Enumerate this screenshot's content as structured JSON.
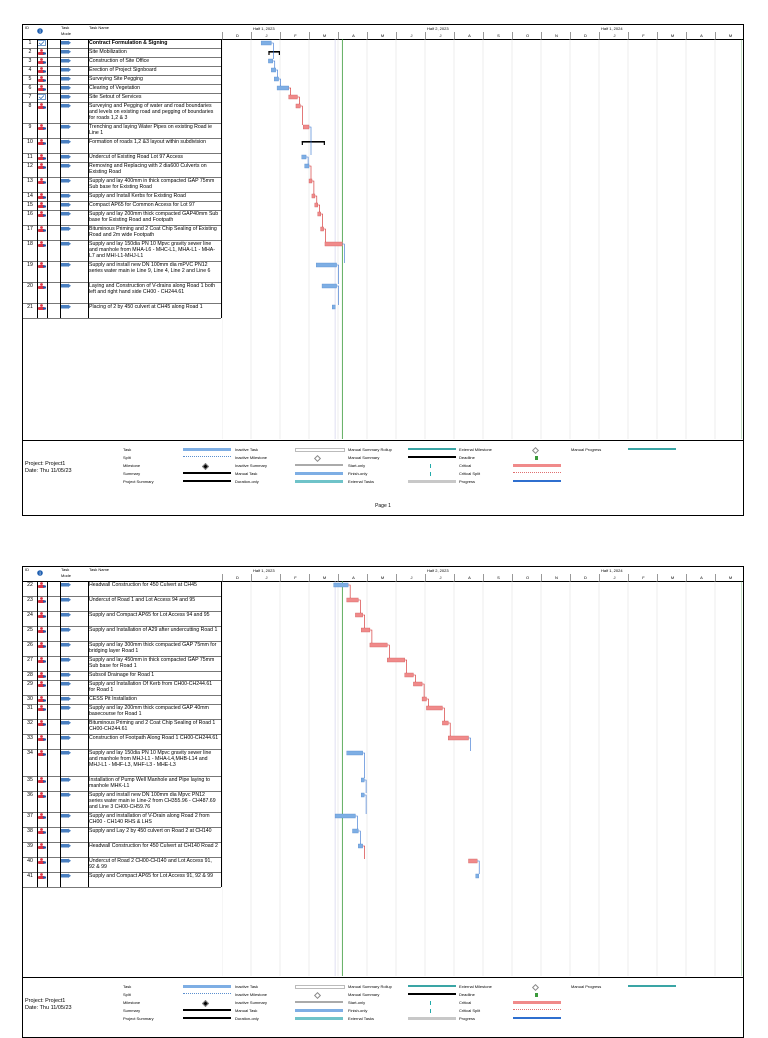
{
  "columns": {
    "id": "ID",
    "mode_line1": "Task",
    "mode_line2": "Mode",
    "name": "Task Name"
  },
  "timescale": {
    "halves": [
      "Half 1, 2023",
      "Half 2, 2023",
      "Half 1, 2024"
    ],
    "months": [
      "D",
      "J",
      "F",
      "M",
      "A",
      "M",
      "J",
      "J",
      "A",
      "S",
      "O",
      "N",
      "D",
      "J",
      "F",
      "M",
      "A",
      "M"
    ]
  },
  "page1": {
    "rows": [
      {
        "id": "1",
        "name": "Contract Formulation & Signing",
        "bold": true
      },
      {
        "id": "2",
        "name": "Site Mobilization"
      },
      {
        "id": "3",
        "name": "Construction of Site Office"
      },
      {
        "id": "4",
        "name": "Erection of Project Signboard"
      },
      {
        "id": "5",
        "name": "Surveying Site Pegging"
      },
      {
        "id": "6",
        "name": "Clearing of Vegetation"
      },
      {
        "id": "7",
        "name": "Site Setout of Services"
      },
      {
        "id": "8",
        "name": "Surveying and Pegging of water and road boundaries and levels on existing road and pegging of boundaries for roads 1,2 & 3"
      },
      {
        "id": "9",
        "name": "Trenching and laying Water Pipes on existing Road ie Line 1"
      },
      {
        "id": "10",
        "name": "Formation of roads 1,2 &3 layout within subdivision"
      },
      {
        "id": "11",
        "name": "Undercut of Existing Road Lot 97 Access"
      },
      {
        "id": "12",
        "name": "Removing and Replacing with 2 dia600 Culverts on Existing Road"
      },
      {
        "id": "13",
        "name": "Supply and lay 400mm in thick compacted GAP 75mm Sub base for Existing Road"
      },
      {
        "id": "14",
        "name": "Supply and Install Kerbs for Existing Road"
      },
      {
        "id": "15",
        "name": "Compact AP65 for Common Access for Lot 97"
      },
      {
        "id": "16",
        "name": "Supply and lay 200mm thick compacted GAP40mm Sub base for Existing Road and Footpath"
      },
      {
        "id": "17",
        "name": "Bituminous Priming and 2 Coat Chip Sealing of Existing Road and 2m wide Footpath"
      },
      {
        "id": "18",
        "name": "Supply and lay 150dia PN 10 Mpvc gravity sewer line and manhole from MHA-L6 - MHC-L1, MHA-L1 - MHA-L7 and MHI-L1-MHJ-L1"
      },
      {
        "id": "19",
        "name": "Supply and install new DN 100mm dia mPVC PN12 series water main ie Line 9, Line 4, Line 2 and Line 6"
      },
      {
        "id": "20",
        "name": "Laying and Construction of V-drains along Road 1 both left and right hand side CH00 - CH244.61"
      },
      {
        "id": "21",
        "name": "Placing of 2 by 450 culvert at CH45 along Road 1"
      }
    ],
    "page_number": "Page 1"
  },
  "page2": {
    "rows": [
      {
        "id": "22",
        "name": "Headwall Construction for 450 Culvert at CH45"
      },
      {
        "id": "23",
        "name": "Undercut of Road 1 and Lot Access 94 and 95"
      },
      {
        "id": "24",
        "name": "Supply and Compact AP65 for Lot Access 94 and 95"
      },
      {
        "id": "25",
        "name": "Supply and Installation of A29 after undercutting Road 1"
      },
      {
        "id": "26",
        "name": "Supply and lay 300mm thick compacted GAP 75mm for bridging layer Road 1"
      },
      {
        "id": "27",
        "name": "Supply and lay 450mm in thick compacted GAP 75mm Sub base for Road 1"
      },
      {
        "id": "28",
        "name": "Subsoil Drainage for Road 1"
      },
      {
        "id": "29",
        "name": "Supply and Installation Of Kerb from CH00-CH244.61 for Road 1"
      },
      {
        "id": "30",
        "name": "CESS Pit Installation"
      },
      {
        "id": "31",
        "name": "Supply and lay 200mm thick compacted GAP 40mm basecourse for Road 1"
      },
      {
        "id": "32",
        "name": "Bituminous Priming and 2 Coat Chip Sealing of Road 1 CH00-CH244.61"
      },
      {
        "id": "33",
        "name": "Construction of Footpath Along Road 1 CH00-CH244.61"
      },
      {
        "id": "34",
        "name": "Supply and lay 150dia PN 10 Mpvc gravity sewer line and manhole from MHJ-L1 - MHA-L4,MHB-L14 and MHJ-L1 - MHF-L3, MHF-L3 - MHE-L3"
      },
      {
        "id": "35",
        "name": "Installation of Pump Well Manhole and Pipe laying to manhole MHK-L1"
      },
      {
        "id": "36",
        "name": "Supply and install new DN 100mm dia Mpvc PN12 series water main ie Line-2 from CH355.96 - CH487.69 and Line 3 CH00-CH59.76"
      },
      {
        "id": "37",
        "name": "Supply and installation of V-Drain along Road 2 from CH00 - CH140 RHS & LHS"
      },
      {
        "id": "38",
        "name": "Supply and Lay 2 by 450 culvert on Road 2 at CH140"
      },
      {
        "id": "39",
        "name": "Headwall Construction for 450 Culvert at CH140 Road 2"
      },
      {
        "id": "40",
        "name": "Undercut of Road 2 CH00-CH140 and Lot Access 91, 92 & 99"
      },
      {
        "id": "41",
        "name": "Supply and Compact AP65 for Lot Access 91, 92 & 99"
      }
    ]
  },
  "project": {
    "line1": "Project: Project1",
    "line2": "Date: Thu 11/05/23"
  },
  "legend": {
    "col1": [
      "Task",
      "Split",
      "Milestone",
      "Summary",
      "Project Summary"
    ],
    "col2": [
      "Inactive Task",
      "Inactive Milestone",
      "Inactive Summary",
      "Manual Task",
      "Duration-only"
    ],
    "col3": [
      "Manual Summary Rollup",
      "Manual Summary",
      "Start-only",
      "Finish-only",
      "External Tasks"
    ],
    "col4": [
      "External Milestone",
      "Deadline",
      "Critical",
      "Critical Split",
      "Progress"
    ],
    "col5": [
      "Manual Progress"
    ]
  },
  "colors": {
    "task": "#7eaee4",
    "critical": "#f08a8a",
    "summary": "#000000",
    "manual_summary_rollup": "#3aa5a5",
    "progress": "#2f6fcf",
    "deadline": "#3a9a3a"
  }
}
